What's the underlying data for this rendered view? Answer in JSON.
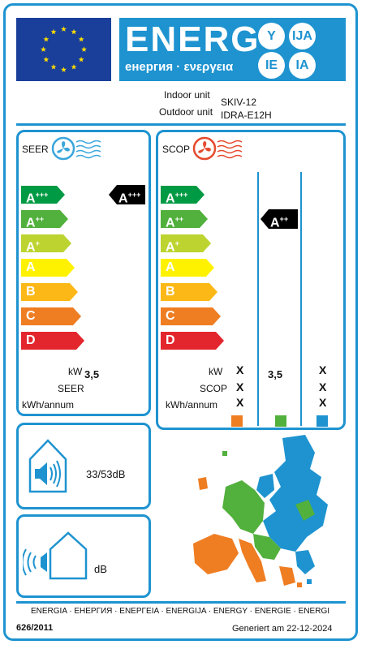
{
  "header": {
    "title": "ENERG",
    "subtitle": "енергия · ενεργεια",
    "language_codes": [
      "Y",
      "IJA",
      "IE",
      "IA"
    ]
  },
  "product": {
    "indoor_label": "Indoor unit",
    "indoor_value": "SKIV-12",
    "outdoor_label": "Outdoor unit",
    "outdoor_value": "IDRA-E12H"
  },
  "classes": [
    "A+++",
    "A++",
    "A+",
    "A",
    "B",
    "C",
    "D"
  ],
  "class_colors": [
    "#009a44",
    "#52b03d",
    "#bdd430",
    "#fff200",
    "#fbb817",
    "#ef7d22",
    "#e3262d"
  ],
  "seer": {
    "title": "SEER",
    "rating": "A+++",
    "kw_label": "kW",
    "kw_value": "3,5",
    "seer_label": "SEER",
    "energy_label": "kWh/annum"
  },
  "scop": {
    "title": "SCOP",
    "rating": "A++",
    "kw_label": "kW",
    "scop_label": "SCOP",
    "energy_label": "kWh/annum",
    "columns": [
      {
        "kw": "X",
        "scop": "X",
        "energy": "X",
        "color": "#ef7d22"
      },
      {
        "kw": "3,5",
        "scop": "",
        "energy": "",
        "color": "#52b03d"
      },
      {
        "kw": "X",
        "scop": "X",
        "energy": "X",
        "color": "#1e93d0"
      }
    ]
  },
  "noise": {
    "indoor": "33/53dB",
    "outdoor": "dB"
  },
  "footer": {
    "languages": "ENERGIA · ЕНЕРГИЯ · ΕΝΕΡΓΕΙΑ · ENERGIJA · ENERGY · ENERGIE · ENERGI",
    "regulation": "626/2011",
    "generated": "Generiert am 22-12-2024"
  },
  "colors": {
    "accent": "#1e93d0",
    "eu_blue": "#1a3f9a",
    "eu_star": "#ffdd00"
  }
}
